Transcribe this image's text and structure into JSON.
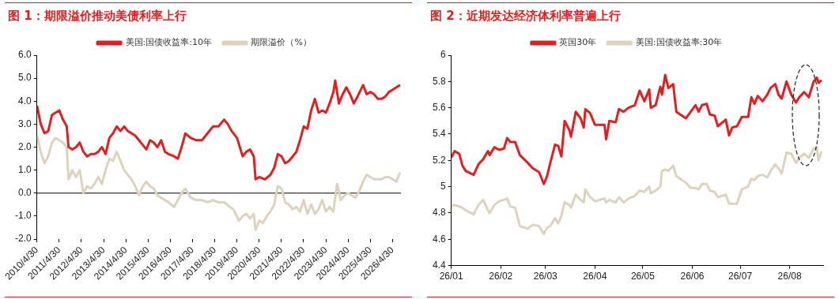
{
  "chart_data": [
    {
      "type": "line",
      "title": "图 1：期限溢价推动美债利率上行",
      "legend": "top",
      "grid": false,
      "marker": "none",
      "line_style": "solid",
      "xlim": [
        "2010-04-30",
        "2026-09-15"
      ],
      "xticks": [
        {
          "value": "2010-04-30",
          "label": "2010/4/30"
        },
        {
          "value": "2011-04-30",
          "label": "2011/4/30"
        },
        {
          "value": "2012-04-30",
          "label": "2012/4/30"
        },
        {
          "value": "2013-04-30",
          "label": "2013/4/30"
        },
        {
          "value": "2014-04-30",
          "label": "2014/4/30"
        },
        {
          "value": "2015-04-30",
          "label": "2015/4/30"
        },
        {
          "value": "2016-04-30",
          "label": "2016/4/30"
        },
        {
          "value": "2017-04-30",
          "label": "2017/4/30"
        },
        {
          "value": "2018-04-30",
          "label": "2018/4/30"
        },
        {
          "value": "2019-04-30",
          "label": "2019/4/30"
        },
        {
          "value": "2020-04-30",
          "label": "2020/4/30"
        },
        {
          "value": "2021-04-30",
          "label": "2021/4/30"
        },
        {
          "value": "2022-04-30",
          "label": "2022/4/30"
        },
        {
          "value": "2023-04-30",
          "label": "2023/4/30"
        },
        {
          "value": "2024-04-30",
          "label": "2024/4/30"
        },
        {
          "value": "2025-04-30",
          "label": "2025/4/30"
        },
        {
          "value": "2026-04-30",
          "label": "2026/4/30"
        }
      ],
      "ylim": [
        -2,
        6
      ],
      "yticks": [
        {
          "value": -2,
          "label": "-2.0"
        },
        {
          "value": -1,
          "label": "-1.0"
        },
        {
          "value": 0,
          "label": "0.0"
        },
        {
          "value": 1,
          "label": "1.0"
        },
        {
          "value": 2,
          "label": "2.0"
        },
        {
          "value": 3,
          "label": "3.0"
        },
        {
          "value": 4,
          "label": "4.0"
        },
        {
          "value": 5,
          "label": "5.0"
        },
        {
          "value": 6,
          "label": "6.0"
        }
      ],
      "ref_lines": [
        {
          "axis": "y",
          "value": 0,
          "color": "#000000"
        }
      ],
      "series": [
        {
          "name": "美国:国债收益率:10年",
          "color": "#e02020",
          "x": [
            "2010-05",
            "2010-07",
            "2010-09",
            "2010-11",
            "2011-01",
            "2011-03",
            "2011-05",
            "2011-07",
            "2011-09",
            "2011-10",
            "2011-12",
            "2012-02",
            "2012-04",
            "2012-06",
            "2012-08",
            "2012-10",
            "2012-12",
            "2013-02",
            "2013-04",
            "2013-06",
            "2013-08",
            "2013-10",
            "2013-12",
            "2014-02",
            "2014-04",
            "2014-06",
            "2014-08",
            "2014-10",
            "2014-12",
            "2015-02",
            "2015-04",
            "2015-06",
            "2015-08",
            "2015-10",
            "2015-12",
            "2016-02",
            "2016-04",
            "2016-07",
            "2016-09",
            "2016-11",
            "2017-01",
            "2017-04",
            "2017-07",
            "2017-10",
            "2018-01",
            "2018-04",
            "2018-07",
            "2018-10",
            "2018-12",
            "2019-02",
            "2019-05",
            "2019-08",
            "2019-10",
            "2019-12",
            "2020-02",
            "2020-03",
            "2020-05",
            "2020-08",
            "2020-11",
            "2021-01",
            "2021-03",
            "2021-05",
            "2021-07",
            "2021-09",
            "2021-11",
            "2022-01",
            "2022-03",
            "2022-05",
            "2022-07",
            "2022-09",
            "2022-11",
            "2023-01",
            "2023-03",
            "2023-05",
            "2023-07",
            "2023-09",
            "2023-10",
            "2023-12",
            "2024-02",
            "2024-04",
            "2024-06",
            "2024-08",
            "2024-10",
            "2025-01",
            "2025-03",
            "2025-05",
            "2025-07",
            "2025-09",
            "2025-11",
            "2026-01",
            "2026-03",
            "2026-05",
            "2026-07",
            "2026-09"
          ],
          "values": [
            3.8,
            3.0,
            2.6,
            2.7,
            3.4,
            3.5,
            3.6,
            3.2,
            2.9,
            2.0,
            1.9,
            2.0,
            2.2,
            1.8,
            1.6,
            1.7,
            1.7,
            1.8,
            2.0,
            1.7,
            2.4,
            2.6,
            2.9,
            2.7,
            2.9,
            2.7,
            2.6,
            2.5,
            2.3,
            2.1,
            1.9,
            2.3,
            2.2,
            2.0,
            2.3,
            1.8,
            1.7,
            1.6,
            1.5,
            2.0,
            2.6,
            2.4,
            2.3,
            2.3,
            2.6,
            2.9,
            2.9,
            3.2,
            3.0,
            2.7,
            2.4,
            1.6,
            1.8,
            1.9,
            1.6,
            0.6,
            0.7,
            0.6,
            0.8,
            1.1,
            1.7,
            1.6,
            1.3,
            1.4,
            1.6,
            1.8,
            2.3,
            2.9,
            2.8,
            3.6,
            4.1,
            3.5,
            3.6,
            3.5,
            3.9,
            4.4,
            4.9,
            3.9,
            4.3,
            4.6,
            4.3,
            3.9,
            4.2,
            4.7,
            4.3,
            4.4,
            4.3,
            4.1,
            4.1,
            4.2,
            4.4,
            4.5,
            4.6,
            4.7
          ]
        },
        {
          "name": "期限溢价（%）",
          "color": "#ddd3bd",
          "x": [
            "2010-05",
            "2010-07",
            "2010-09",
            "2010-11",
            "2011-01",
            "2011-03",
            "2011-05",
            "2011-07",
            "2011-09",
            "2011-10",
            "2011-12",
            "2012-02",
            "2012-04",
            "2012-06",
            "2012-08",
            "2012-10",
            "2012-12",
            "2013-02",
            "2013-04",
            "2013-06",
            "2013-08",
            "2013-10",
            "2013-12",
            "2014-02",
            "2014-04",
            "2014-06",
            "2014-08",
            "2014-10",
            "2014-12",
            "2015-02",
            "2015-04",
            "2015-06",
            "2015-08",
            "2015-10",
            "2015-12",
            "2016-02",
            "2016-04",
            "2016-07",
            "2016-09",
            "2016-11",
            "2017-01",
            "2017-04",
            "2017-07",
            "2017-10",
            "2018-01",
            "2018-04",
            "2018-07",
            "2018-10",
            "2019-01",
            "2019-03",
            "2019-06",
            "2019-08",
            "2019-10",
            "2019-12",
            "2020-02",
            "2020-03",
            "2020-05",
            "2020-07",
            "2020-09",
            "2020-11",
            "2021-01",
            "2021-03",
            "2021-05",
            "2021-07",
            "2021-09",
            "2021-11",
            "2022-01",
            "2022-03",
            "2022-05",
            "2022-07",
            "2022-09",
            "2022-11",
            "2023-01",
            "2023-03",
            "2023-05",
            "2023-07",
            "2023-09",
            "2023-11",
            "2024-01",
            "2024-03",
            "2024-05",
            "2024-07",
            "2024-09",
            "2024-11",
            "2025-01",
            "2025-03",
            "2025-05",
            "2025-07",
            "2025-09",
            "2025-11",
            "2026-01",
            "2026-03",
            "2026-05",
            "2026-07",
            "2026-09"
          ],
          "values": [
            2.5,
            1.8,
            1.3,
            1.6,
            2.2,
            2.4,
            2.3,
            2.2,
            2.0,
            0.6,
            1.0,
            0.7,
            1.0,
            0.0,
            0.3,
            0.2,
            0.4,
            0.7,
            0.4,
            1.0,
            1.5,
            1.4,
            1.8,
            1.4,
            1.0,
            0.8,
            0.6,
            0.3,
            -0.1,
            0.3,
            0.5,
            0.3,
            0.2,
            -0.1,
            -0.2,
            -0.3,
            -0.4,
            -0.6,
            -0.3,
            0.0,
            0.2,
            -0.2,
            -0.3,
            -0.3,
            -0.4,
            -0.3,
            -0.4,
            -0.4,
            -0.6,
            -0.7,
            -1.2,
            -1.0,
            -0.9,
            -1.1,
            -0.9,
            -1.6,
            -1.2,
            -1.3,
            -1.0,
            -0.8,
            -0.5,
            0.3,
            0.2,
            -0.4,
            -0.5,
            -0.7,
            -0.6,
            -0.8,
            -0.3,
            -0.9,
            -0.5,
            -0.9,
            -0.7,
            -0.3,
            -0.8,
            -0.6,
            -0.8,
            0.4,
            -0.3,
            -0.1,
            0.0,
            -0.1,
            -0.2,
            0.1,
            0.5,
            0.8,
            0.7,
            0.6,
            0.6,
            0.6,
            0.7,
            0.7,
            0.6,
            0.5,
            0.9
          ]
        }
      ]
    },
    {
      "type": "line",
      "title": "图 2：近期发达经济体利率普遍上行",
      "legend": "top",
      "grid": false,
      "marker": "none",
      "line_style": "solid",
      "xlim": [
        "2026-01-01",
        "2026-08-22"
      ],
      "xticks": [
        {
          "value": "2026-01-01",
          "label": "26/01"
        },
        {
          "value": "2026-02-01",
          "label": "26/02"
        },
        {
          "value": "2026-03-01",
          "label": "26/03"
        },
        {
          "value": "2026-04-01",
          "label": "26/04"
        },
        {
          "value": "2026-05-01",
          "label": "26/05"
        },
        {
          "value": "2026-06-01",
          "label": "26/06"
        },
        {
          "value": "2026-07-01",
          "label": "26/07"
        },
        {
          "value": "2026-08-01",
          "label": "26/08"
        }
      ],
      "ylim": [
        4.4,
        6
      ],
      "yticks": [
        4.4,
        4.6,
        4.8,
        5,
        5.2,
        5.4,
        5.6,
        5.8,
        6
      ],
      "series": [
        {
          "name": "英国30年",
          "color": "#e02020",
          "x": [
            "2026-01-01",
            "2026-01-03",
            "2026-01-06",
            "2026-01-08",
            "2026-01-10",
            "2026-01-15",
            "2026-01-18",
            "2026-01-21",
            "2026-01-24",
            "2026-01-25",
            "2026-01-28",
            "2026-01-31",
            "2026-02-03",
            "2026-02-05",
            "2026-02-07",
            "2026-02-10",
            "2026-02-13",
            "2026-02-18",
            "2026-02-21",
            "2026-02-25",
            "2026-02-28",
            "2026-03-02",
            "2026-03-04",
            "2026-03-07",
            "2026-03-09",
            "2026-03-11",
            "2026-03-13",
            "2026-03-16",
            "2026-03-17",
            "2026-03-20",
            "2026-03-23",
            "2026-03-25",
            "2026-03-26",
            "2026-03-29",
            "2026-04-01",
            "2026-04-07",
            "2026-04-08",
            "2026-04-10",
            "2026-04-14",
            "2026-04-16",
            "2026-04-19",
            "2026-04-22",
            "2026-04-26",
            "2026-04-29",
            "2026-05-02",
            "2026-05-05",
            "2026-05-06",
            "2026-05-09",
            "2026-05-12",
            "2026-05-13",
            "2026-05-15",
            "2026-05-17",
            "2026-05-20",
            "2026-05-22",
            "2026-05-28",
            "2026-05-31",
            "2026-06-03",
            "2026-06-05",
            "2026-06-07",
            "2026-06-10",
            "2026-06-12",
            "2026-06-15",
            "2026-06-17",
            "2026-06-22",
            "2026-06-24",
            "2026-06-26",
            "2026-06-29",
            "2026-07-02",
            "2026-07-06",
            "2026-07-08",
            "2026-07-10",
            "2026-07-12",
            "2026-07-15",
            "2026-07-18",
            "2026-07-20",
            "2026-07-23",
            "2026-07-25",
            "2026-07-27",
            "2026-07-30",
            "2026-08-02",
            "2026-08-05",
            "2026-08-07",
            "2026-08-10",
            "2026-08-13",
            "2026-08-16",
            "2026-08-18",
            "2026-08-19",
            "2026-08-21"
          ],
          "values": [
            5.22,
            5.27,
            5.25,
            5.16,
            5.12,
            5.09,
            5.17,
            5.21,
            5.27,
            5.24,
            5.3,
            5.28,
            5.29,
            5.37,
            5.34,
            5.34,
            5.24,
            5.18,
            5.14,
            5.11,
            5.02,
            5.08,
            5.18,
            5.32,
            5.31,
            5.23,
            5.5,
            5.43,
            5.38,
            5.57,
            5.52,
            5.45,
            5.59,
            5.56,
            5.47,
            5.47,
            5.36,
            5.5,
            5.49,
            5.59,
            5.57,
            5.6,
            5.62,
            5.73,
            5.65,
            5.74,
            5.6,
            5.62,
            5.76,
            5.7,
            5.85,
            5.75,
            5.78,
            5.57,
            5.52,
            5.57,
            5.62,
            5.57,
            5.62,
            5.63,
            5.55,
            5.54,
            5.46,
            5.51,
            5.39,
            5.45,
            5.46,
            5.53,
            5.53,
            5.68,
            5.63,
            5.69,
            5.65,
            5.7,
            5.75,
            5.78,
            5.7,
            5.67,
            5.8,
            5.7,
            5.64,
            5.68,
            5.72,
            5.68,
            5.8,
            5.83,
            5.79,
            5.81
          ]
        },
        {
          "name": "美国:国债收益率:30年",
          "color": "#ddd3bd",
          "x": [
            "2026-01-01",
            "2026-01-03",
            "2026-01-06",
            "2026-01-08",
            "2026-01-10",
            "2026-01-15",
            "2026-01-18",
            "2026-01-21",
            "2026-01-24",
            "2026-01-25",
            "2026-01-28",
            "2026-01-31",
            "2026-02-03",
            "2026-02-05",
            "2026-02-07",
            "2026-02-10",
            "2026-02-13",
            "2026-02-18",
            "2026-02-21",
            "2026-02-25",
            "2026-02-28",
            "2026-03-02",
            "2026-03-04",
            "2026-03-07",
            "2026-03-09",
            "2026-03-11",
            "2026-03-13",
            "2026-03-16",
            "2026-03-17",
            "2026-03-20",
            "2026-03-23",
            "2026-03-25",
            "2026-03-26",
            "2026-03-29",
            "2026-04-01",
            "2026-04-07",
            "2026-04-08",
            "2026-04-10",
            "2026-04-14",
            "2026-04-16",
            "2026-04-19",
            "2026-04-22",
            "2026-04-26",
            "2026-04-29",
            "2026-05-02",
            "2026-05-05",
            "2026-05-06",
            "2026-05-09",
            "2026-05-12",
            "2026-05-13",
            "2026-05-15",
            "2026-05-17",
            "2026-05-20",
            "2026-05-22",
            "2026-05-28",
            "2026-05-31",
            "2026-06-03",
            "2026-06-05",
            "2026-06-07",
            "2026-06-10",
            "2026-06-12",
            "2026-06-15",
            "2026-06-17",
            "2026-06-22",
            "2026-06-24",
            "2026-06-26",
            "2026-06-29",
            "2026-07-02",
            "2026-07-06",
            "2026-07-08",
            "2026-07-10",
            "2026-07-12",
            "2026-07-15",
            "2026-07-18",
            "2026-07-20",
            "2026-07-23",
            "2026-07-25",
            "2026-07-27",
            "2026-07-30",
            "2026-08-02",
            "2026-08-05",
            "2026-08-07",
            "2026-08-10",
            "2026-08-13",
            "2026-08-16",
            "2026-08-18",
            "2026-08-19",
            "2026-08-21"
          ],
          "values": [
            4.85,
            4.86,
            4.85,
            4.84,
            4.82,
            4.79,
            4.86,
            4.9,
            4.82,
            4.8,
            4.86,
            4.89,
            4.9,
            4.91,
            4.85,
            4.84,
            4.7,
            4.68,
            4.71,
            4.7,
            4.64,
            4.69,
            4.7,
            4.76,
            4.72,
            4.78,
            4.88,
            4.86,
            4.84,
            4.94,
            4.9,
            4.88,
            4.98,
            4.92,
            4.89,
            4.91,
            4.88,
            4.9,
            4.88,
            4.92,
            4.88,
            4.91,
            4.93,
            4.97,
            4.96,
            5.0,
            4.95,
            4.97,
            5.0,
            5.12,
            5.13,
            5.12,
            5.16,
            5.08,
            5.03,
            4.99,
            4.99,
            4.98,
            5.02,
            5.02,
            4.97,
            4.96,
            4.92,
            4.94,
            4.87,
            4.87,
            4.87,
            4.98,
            5.0,
            5.06,
            5.05,
            5.08,
            5.09,
            5.07,
            5.12,
            5.17,
            5.14,
            5.1,
            5.26,
            5.25,
            5.18,
            5.22,
            5.25,
            5.22,
            5.29,
            5.3,
            5.2,
            5.27
          ]
        }
      ]
    }
  ]
}
